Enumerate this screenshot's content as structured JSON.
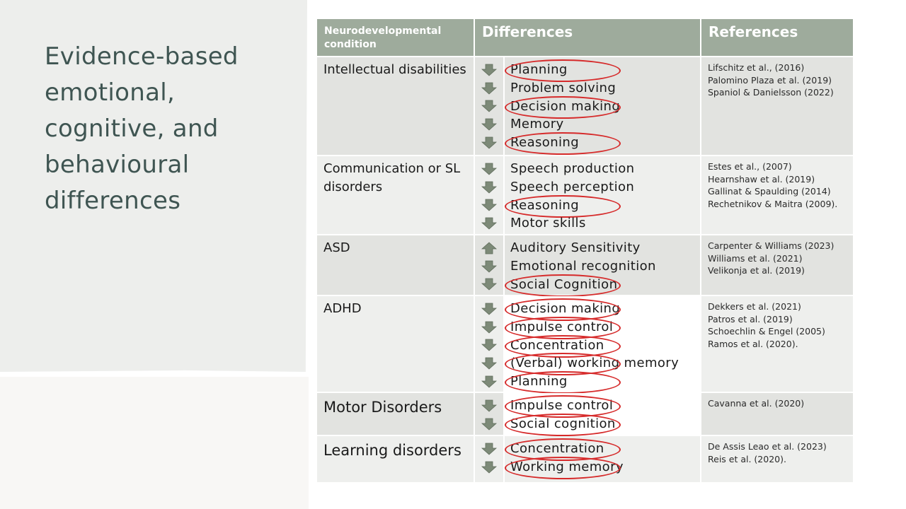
{
  "slide": {
    "title": "Evidence-based emotional, cognitive, and behavioural differences"
  },
  "table": {
    "headers": {
      "condition": "Neurodevelopmental condition",
      "differences": "Differences",
      "references": "References"
    },
    "rows": [
      {
        "condition": "Intellectual disabilities",
        "items": [
          {
            "label": "Planning",
            "direction": "down",
            "circled": true
          },
          {
            "label": "Problem solving",
            "direction": "down",
            "circled": false
          },
          {
            "label": "Decision making",
            "direction": "down",
            "circled": true
          },
          {
            "label": "Memory",
            "direction": "down",
            "circled": false
          },
          {
            "label": "Reasoning",
            "direction": "down",
            "circled": true
          }
        ],
        "references": [
          "Lifschitz et al., (2016)",
          "Palomino Plaza et al. (2019)",
          "Spaniol & Danielsson (2022)"
        ]
      },
      {
        "condition": "Communication or SL disorders",
        "items": [
          {
            "label": "Speech production",
            "direction": "down",
            "circled": false
          },
          {
            "label": "Speech perception",
            "direction": "down",
            "circled": false
          },
          {
            "label": "Reasoning",
            "direction": "down",
            "circled": true
          },
          {
            "label": "Motor skills",
            "direction": "down",
            "circled": false
          }
        ],
        "references": [
          "Estes et al., (2007)",
          "Hearnshaw et al. (2019)",
          "Gallinat & Spaulding (2014)",
          "Rechetnikov & Maitra (2009)."
        ]
      },
      {
        "condition": "ASD",
        "items": [
          {
            "label": "Auditory Sensitivity",
            "direction": "up",
            "circled": false
          },
          {
            "label": "Emotional recognition",
            "direction": "down",
            "circled": false
          },
          {
            "label": "Social Cognition",
            "direction": "down",
            "circled": true
          }
        ],
        "references": [
          "Carpenter & Williams (2023)",
          "Williams et al. (2021)",
          "Velikonja et al. (2019)"
        ]
      },
      {
        "condition": "ADHD",
        "items": [
          {
            "label": "Decision making",
            "direction": "down",
            "circled": true
          },
          {
            "label": "Impulse control",
            "direction": "down",
            "circled": true
          },
          {
            "label": "Concentration",
            "direction": "down",
            "circled": true
          },
          {
            "label": "(Verbal) working memory",
            "direction": "down",
            "circled": true
          },
          {
            "label": "Planning",
            "direction": "down",
            "circled": true
          }
        ],
        "references": [
          "Dekkers et al. (2021)",
          "Patros et al. (2019)",
          "Schoechlin & Engel (2005)",
          "Ramos et al. (2020)."
        ]
      },
      {
        "condition": "Motor Disorders",
        "items": [
          {
            "label": "Impulse control",
            "direction": "down",
            "circled": true
          },
          {
            "label": "Social cognition",
            "direction": "down",
            "circled": true
          }
        ],
        "references": [
          "Cavanna et al. (2020)"
        ]
      },
      {
        "condition": "Learning disorders",
        "items": [
          {
            "label": "Concentration",
            "direction": "down",
            "circled": true
          },
          {
            "label": "Working memory",
            "direction": "down",
            "circled": true
          }
        ],
        "references": [
          "De Assis Leao et al. (2023)",
          "Reis et al. (2020)."
        ]
      }
    ]
  },
  "colors": {
    "header_bg": "#9eab9c",
    "title_text": "#3f5552",
    "arrow_fill": "#7d8a78",
    "circle_stroke": "#d62a2a"
  }
}
